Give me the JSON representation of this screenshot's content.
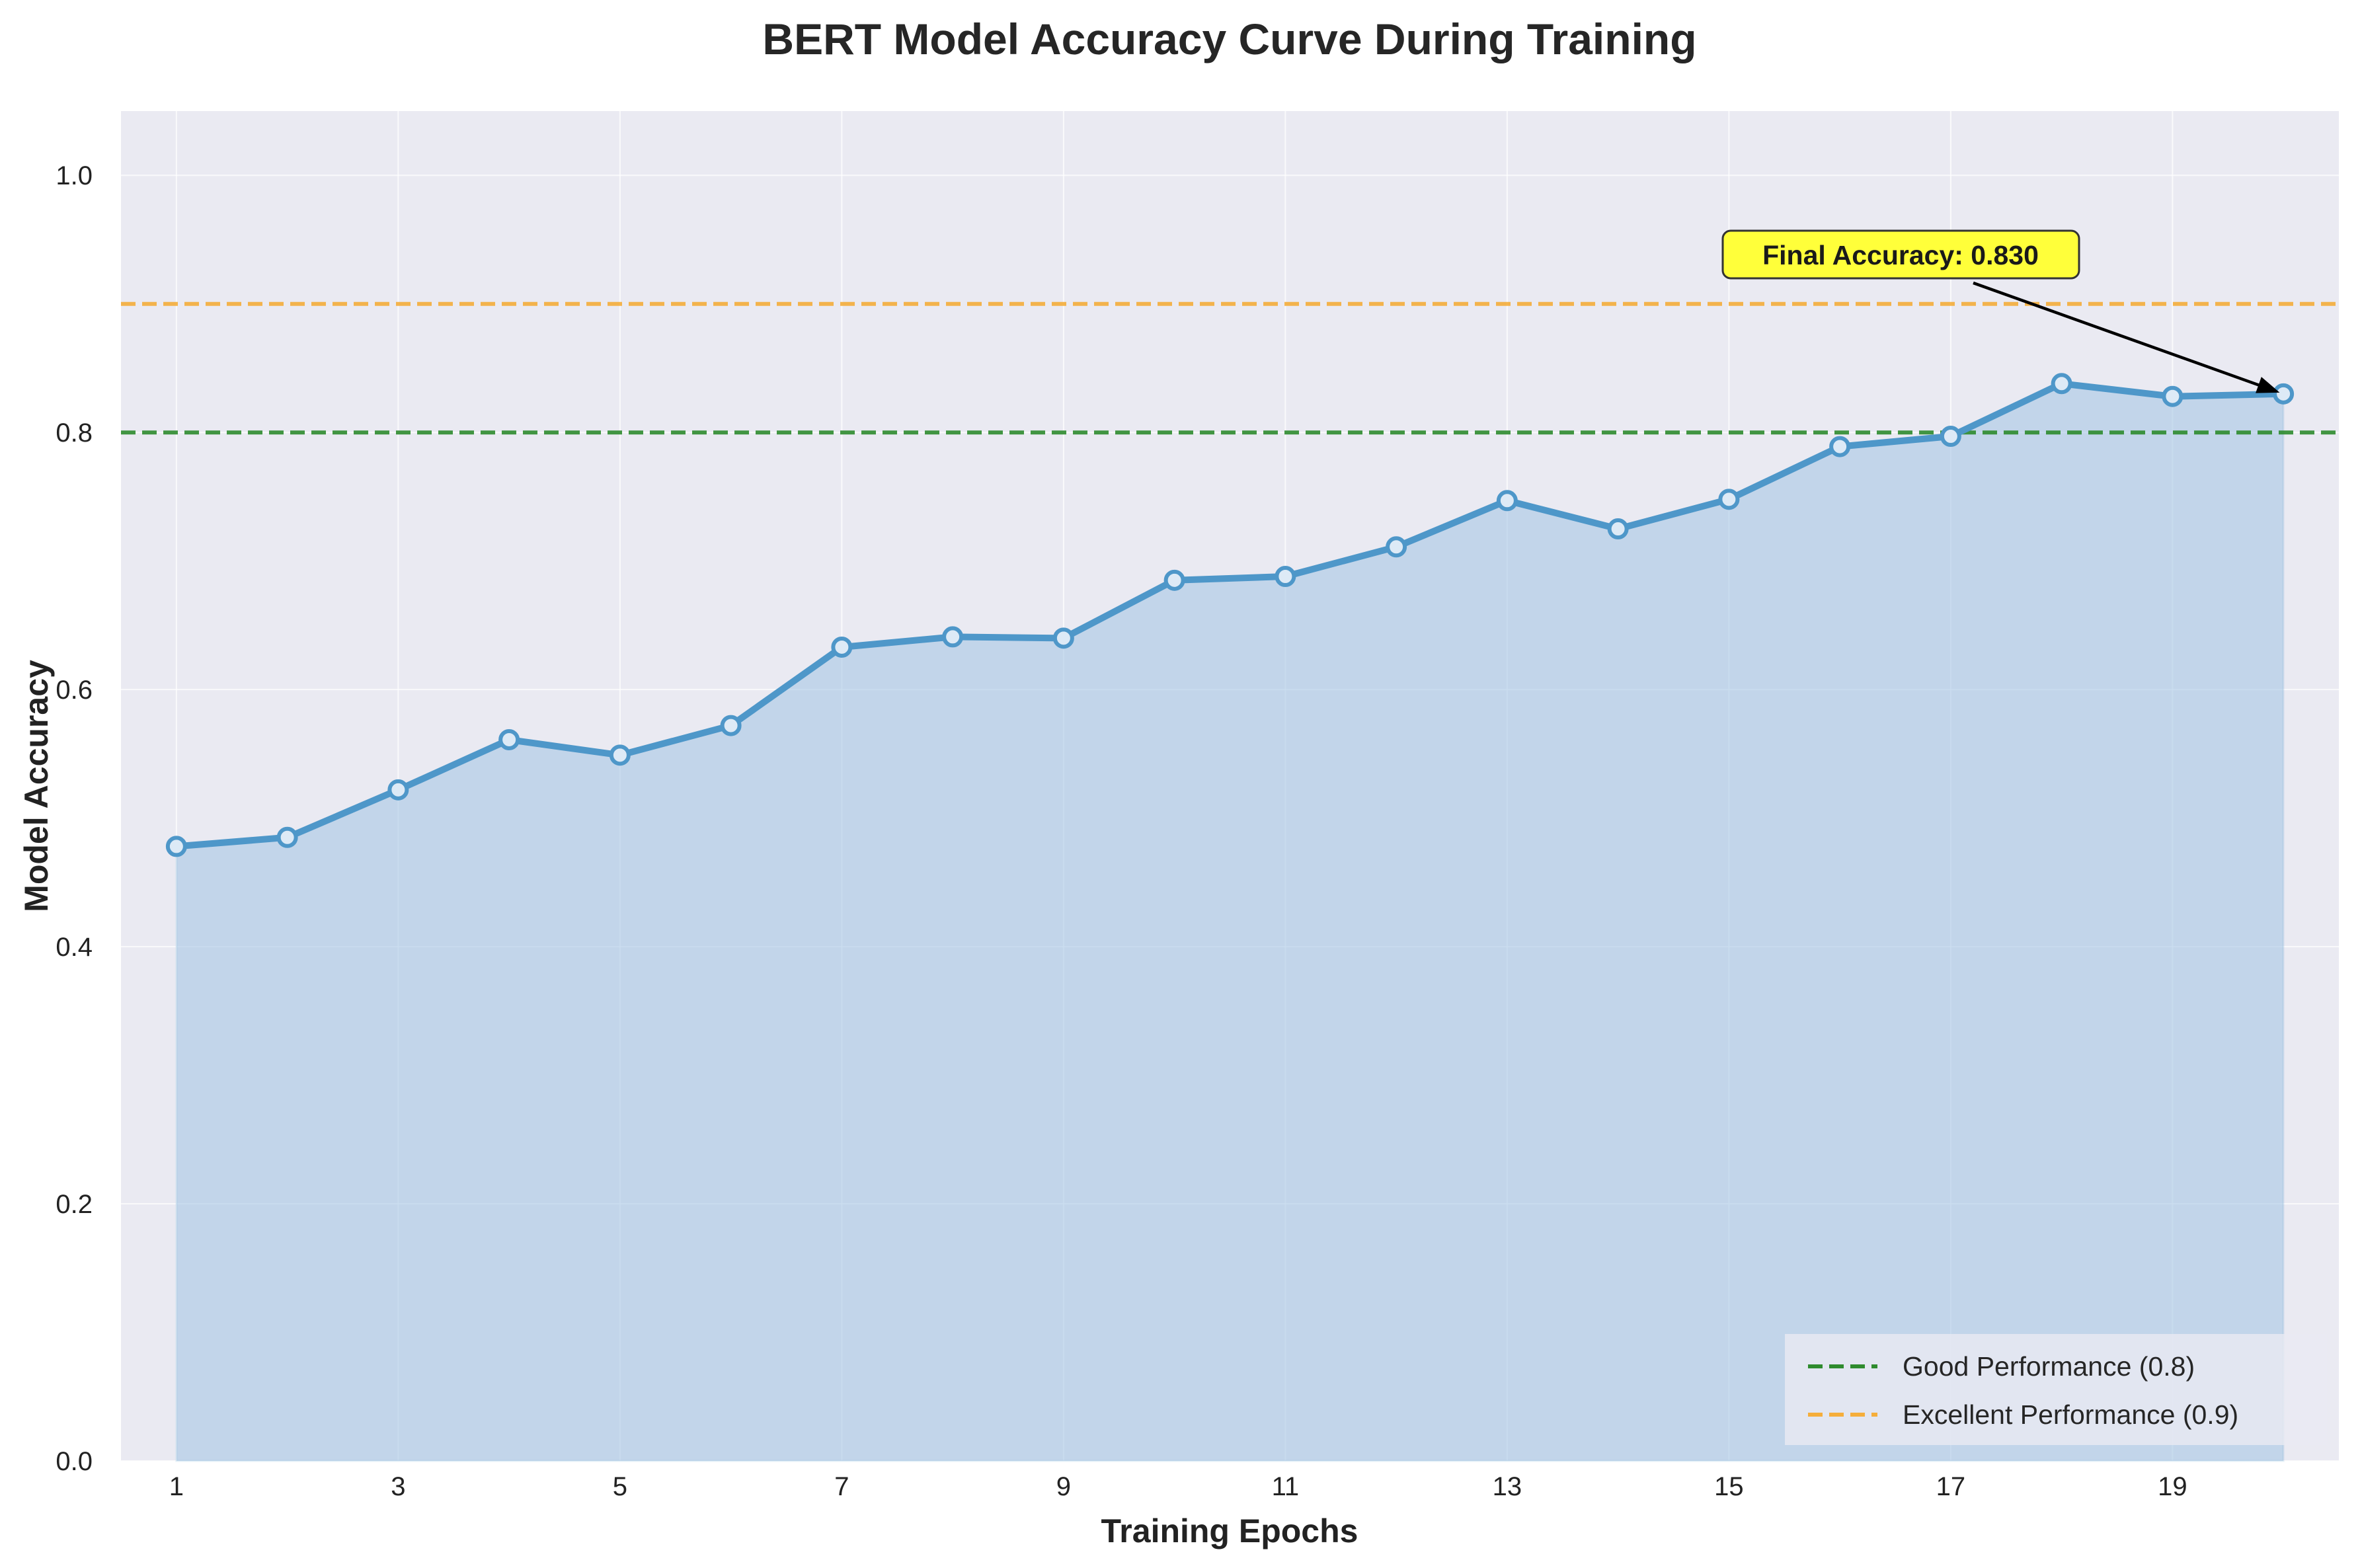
{
  "chart_data": {
    "type": "line",
    "title": "BERT Model Accuracy Curve During Training",
    "xlabel": "Training Epochs",
    "ylabel": "Model Accuracy",
    "x": [
      1,
      2,
      3,
      4,
      5,
      6,
      7,
      8,
      9,
      10,
      11,
      12,
      13,
      14,
      15,
      16,
      17,
      18,
      19,
      20
    ],
    "series": [
      {
        "values": [
          0.478,
          0.485,
          0.522,
          0.561,
          0.549,
          0.572,
          0.633,
          0.641,
          0.64,
          0.685,
          0.688,
          0.711,
          0.747,
          0.725,
          0.748,
          0.789,
          0.797,
          0.838,
          0.828,
          0.83
        ],
        "color": "#4e97c9",
        "fill_color": "#a9c8e6"
      }
    ],
    "xlim": [
      0.5,
      20.5
    ],
    "ylim": [
      0,
      1.05
    ],
    "xticks": [
      "1",
      "3",
      "5",
      "7",
      "9",
      "11",
      "13",
      "15",
      "17",
      "19"
    ],
    "xtick_values": [
      1,
      3,
      5,
      7,
      9,
      11,
      13,
      15,
      17,
      19
    ],
    "yticks": [
      "0.0",
      "0.2",
      "0.4",
      "0.6",
      "0.8",
      "1.0"
    ],
    "ytick_values": [
      0,
      0.2,
      0.4,
      0.6,
      0.8,
      1.0
    ],
    "grid": true,
    "background_color": "#eaeaf2",
    "reference_lines": [
      {
        "name": "Good Performance (0.8)",
        "y": 0.8,
        "color": "#2e8b2e",
        "style": "dashed"
      },
      {
        "name": "Excellent Performance (0.9)",
        "y": 0.9,
        "color": "#f5ae3b",
        "style": "dashed"
      }
    ],
    "legend_position": "bottom-right",
    "annotation": {
      "text": "Final Accuracy: 0.830",
      "target_x": 20,
      "target_y": 0.83,
      "box_color": "#ffff3a"
    }
  }
}
